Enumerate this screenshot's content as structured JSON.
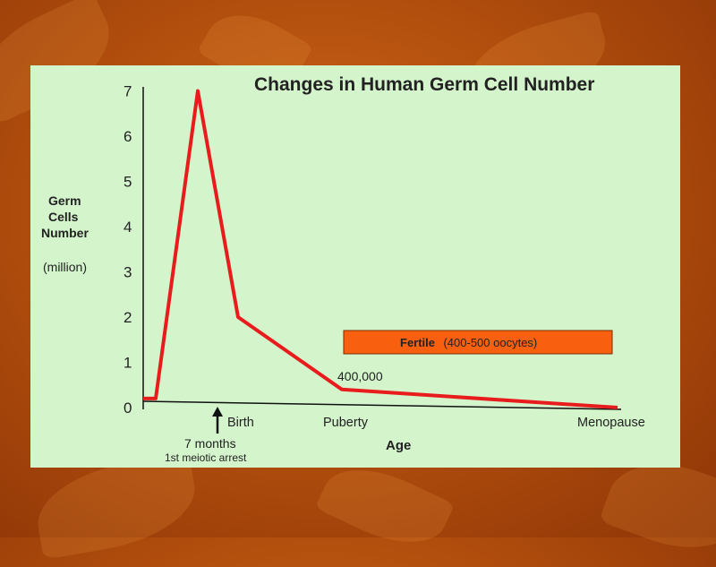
{
  "chart_data": {
    "type": "line",
    "title": "Changes in Human Germ Cell Number",
    "ylabel_lines": [
      "Germ",
      "Cells",
      "Number"
    ],
    "yunit": "(million)",
    "xlabel": "Age",
    "ylim": [
      0,
      7
    ],
    "yticks": [
      "0",
      "1",
      "2",
      "3",
      "4",
      "5",
      "6",
      "7"
    ],
    "x_labels": {
      "seven_months": "7 months",
      "meiotic_arrest": "1st meiotic arrest",
      "birth": "Birth",
      "puberty": "Puberty",
      "menopause": "Menopause"
    },
    "point_label": "400,000",
    "fertile_box": {
      "bold": "Fertile",
      "rest": "(400-500 oocytes)"
    },
    "series": [
      {
        "values": [
          0.2,
          0.2,
          7.0,
          2.0,
          0.4,
          0.0
        ],
        "color": "#e81c1c"
      }
    ],
    "colors": {
      "fertile_box_fill": "#f86010",
      "panel": "#d4f4cc",
      "arrow": "#111111"
    }
  }
}
